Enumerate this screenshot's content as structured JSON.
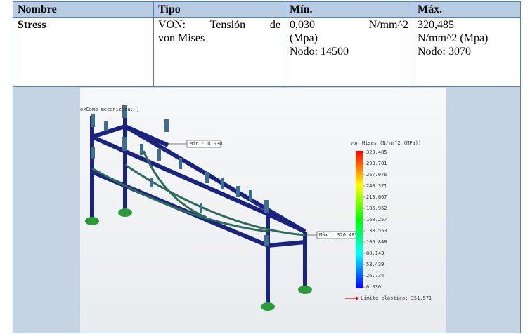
{
  "table": {
    "header": [
      "Nombre",
      "Tipo",
      "Mín.",
      "Máx."
    ],
    "rows": [
      [
        [
          "Stress"
        ],
        [
          "VON: Tensión de",
          "von Mises"
        ],
        [
          "0,030 N/mm^2",
          "(Mpa)",
          "Nodo: 14500"
        ],
        [
          "320,485",
          "N/mm^2 (Mpa)",
          "Nodo: 3070"
        ]
      ]
    ]
  },
  "figure": {
    "watermark": "o<Como mecanizada:-)",
    "min_label": "Mín.: 0.030",
    "max_label": "Máx.: 320.485",
    "legend_title": "von Mises (N/mm^2 (MPa))",
    "legend_values": [
      "320.485",
      "293.781",
      "267.076",
      "240.371",
      "213.667",
      "186.962",
      "160.257",
      "133.553",
      "106.848",
      "80.143",
      "53.439",
      "26.734",
      "0.030"
    ],
    "yield_label": "Límite elástico: 351.571"
  }
}
